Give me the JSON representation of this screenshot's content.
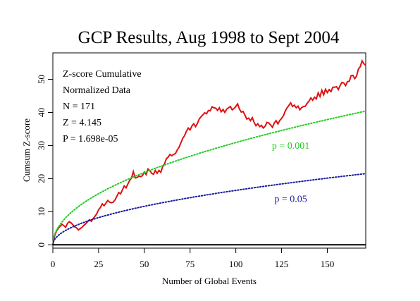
{
  "chart_data": {
    "type": "line",
    "title": "GCP Results, Aug 1998 to Sept 2004",
    "xlabel": "Number of Global Events",
    "ylabel": "Cumsum Z-score",
    "xlim": [
      0,
      171
    ],
    "ylim": [
      -1,
      58
    ],
    "x_ticks": [
      "0",
      "25",
      "50",
      "75",
      "100",
      "125",
      "150"
    ],
    "y_ticks": [
      "0",
      "10",
      "20",
      "30",
      "40",
      "50"
    ],
    "grid": false,
    "stats": [
      "Z-score Cumulative",
      "Normalized Data",
      "N = 171",
      "Z = 4.145",
      "P = 1.698e-05"
    ],
    "annotations": [
      {
        "text": "p = 0.001",
        "x": 130,
        "y": 29,
        "color": "#22cc22"
      },
      {
        "text": "p = 0.05",
        "x": 130,
        "y": 13,
        "color": "#1a1aa0"
      }
    ],
    "series": [
      {
        "style": "solid",
        "color": "#dd1111",
        "points": [
          [
            0,
            0
          ],
          [
            1,
            2.8
          ],
          [
            2,
            4.2
          ],
          [
            3,
            5
          ],
          [
            4,
            5.6
          ],
          [
            5,
            6.2
          ],
          [
            6,
            5.8
          ],
          [
            7,
            5.3
          ],
          [
            8,
            6.5
          ],
          [
            9,
            7
          ],
          [
            10,
            6.6
          ],
          [
            11,
            6
          ],
          [
            12,
            5.4
          ],
          [
            13,
            5.1
          ],
          [
            14,
            4.5
          ],
          [
            15,
            4.9
          ],
          [
            16,
            5.3
          ],
          [
            17,
            5.9
          ],
          [
            18,
            6.4
          ],
          [
            19,
            7
          ],
          [
            20,
            7.6
          ],
          [
            21,
            7.1
          ],
          [
            22,
            7.9
          ],
          [
            23,
            8.6
          ],
          [
            24,
            9.4
          ],
          [
            25,
            10.6
          ],
          [
            26,
            11.3
          ],
          [
            27,
            12.4
          ],
          [
            28,
            11.8
          ],
          [
            29,
            12.6
          ],
          [
            30,
            13.4
          ],
          [
            31,
            12.9
          ],
          [
            32,
            12.7
          ],
          [
            33,
            12.9
          ],
          [
            34,
            13.6
          ],
          [
            35,
            14.7
          ],
          [
            36,
            15.8
          ],
          [
            37,
            15.4
          ],
          [
            38,
            16.6
          ],
          [
            39,
            17.8
          ],
          [
            40,
            17.2
          ],
          [
            41,
            18.4
          ],
          [
            42,
            19.5
          ],
          [
            43,
            20.2
          ],
          [
            44,
            22.1
          ],
          [
            45,
            20.2
          ],
          [
            46,
            20.3
          ],
          [
            47,
            20.8
          ],
          [
            48,
            20.6
          ],
          [
            49,
            20.9
          ],
          [
            50,
            22
          ],
          [
            51,
            21.2
          ],
          [
            52,
            22.9
          ],
          [
            53,
            22.4
          ],
          [
            54,
            21.6
          ],
          [
            55,
            21.3
          ],
          [
            56,
            22.5
          ],
          [
            57,
            21.6
          ],
          [
            58,
            22.5
          ],
          [
            59,
            21.9
          ],
          [
            60,
            23.6
          ],
          [
            61,
            24.4
          ],
          [
            62,
            26
          ],
          [
            63,
            26.5
          ],
          [
            64,
            27.3
          ],
          [
            65,
            26.9
          ],
          [
            66,
            27.3
          ],
          [
            67,
            27.6
          ],
          [
            68,
            28.7
          ],
          [
            69,
            29.5
          ],
          [
            70,
            30.9
          ],
          [
            71,
            32.2
          ],
          [
            72,
            33
          ],
          [
            73,
            34.3
          ],
          [
            74,
            35.3
          ],
          [
            75,
            34.7
          ],
          [
            76,
            35.9
          ],
          [
            77,
            36.6
          ],
          [
            78,
            35.7
          ],
          [
            79,
            36.7
          ],
          [
            80,
            38
          ],
          [
            81,
            38.7
          ],
          [
            82,
            39.3
          ],
          [
            83,
            39.9
          ],
          [
            84,
            39.6
          ],
          [
            85,
            40.6
          ],
          [
            86,
            40.5
          ],
          [
            87,
            41.7
          ],
          [
            88,
            41.4
          ],
          [
            89,
            41.3
          ],
          [
            90,
            40.6
          ],
          [
            91,
            41.4
          ],
          [
            92,
            40.2
          ],
          [
            93,
            40.9
          ],
          [
            94,
            40
          ],
          [
            95,
            41
          ],
          [
            96,
            41.4
          ],
          [
            97,
            41.8
          ],
          [
            98,
            40.8
          ],
          [
            99,
            41.2
          ],
          [
            100,
            41.8
          ],
          [
            101,
            42.6
          ],
          [
            102,
            41
          ],
          [
            103,
            40.1
          ],
          [
            104,
            40.3
          ],
          [
            105,
            39.2
          ],
          [
            106,
            38
          ],
          [
            107,
            38.3
          ],
          [
            108,
            37.5
          ],
          [
            109,
            38.4
          ],
          [
            110,
            37
          ],
          [
            111,
            36
          ],
          [
            112,
            36.6
          ],
          [
            113,
            35.7
          ],
          [
            114,
            36.1
          ],
          [
            115,
            35.3
          ],
          [
            116,
            35.8
          ],
          [
            117,
            37
          ],
          [
            118,
            36.8
          ],
          [
            119,
            36.2
          ],
          [
            120,
            35.5
          ],
          [
            121,
            36.8
          ],
          [
            122,
            37.5
          ],
          [
            123,
            36.5
          ],
          [
            124,
            37.6
          ],
          [
            125,
            38.2
          ],
          [
            126,
            39
          ],
          [
            127,
            40.4
          ],
          [
            128,
            41.4
          ],
          [
            129,
            42.1
          ],
          [
            130,
            42.9
          ],
          [
            131,
            41.8
          ],
          [
            132,
            42.2
          ],
          [
            133,
            41.4
          ],
          [
            134,
            41.9
          ],
          [
            135,
            40.8
          ],
          [
            136,
            41.5
          ],
          [
            137,
            41.8
          ],
          [
            138,
            41.9
          ],
          [
            139,
            42.8
          ],
          [
            140,
            43.4
          ],
          [
            141,
            44.4
          ],
          [
            142,
            43.7
          ],
          [
            143,
            44.6
          ],
          [
            144,
            44.1
          ],
          [
            145,
            45.9
          ],
          [
            146,
            44.8
          ],
          [
            147,
            46.7
          ],
          [
            148,
            45.3
          ],
          [
            149,
            47
          ],
          [
            150,
            46
          ],
          [
            151,
            46.9
          ],
          [
            152,
            46.3
          ],
          [
            153,
            47.6
          ],
          [
            154,
            47.6
          ],
          [
            155,
            47.8
          ],
          [
            156,
            46.9
          ],
          [
            157,
            48.1
          ],
          [
            158,
            49.1
          ],
          [
            159,
            48.9
          ],
          [
            160,
            48.1
          ],
          [
            161,
            49.3
          ],
          [
            162,
            49.4
          ],
          [
            163,
            51.1
          ],
          [
            164,
            51.2
          ],
          [
            165,
            50.2
          ],
          [
            166,
            51
          ],
          [
            167,
            53.1
          ],
          [
            168,
            53.8
          ],
          [
            169,
            55.6
          ],
          [
            170,
            54.7
          ],
          [
            171,
            54.2
          ]
        ]
      },
      {
        "style": "dotted",
        "color": "#22cc22",
        "name": "p = 0.001",
        "formula": "3.09*sqrt(x)"
      },
      {
        "style": "dotted",
        "color": "#1a1aa0",
        "name": "p = 0.05",
        "formula": "1.645*sqrt(x)"
      },
      {
        "style": "solid",
        "color": "#000000",
        "points": [
          [
            0,
            0
          ],
          [
            171,
            0
          ]
        ]
      }
    ]
  }
}
